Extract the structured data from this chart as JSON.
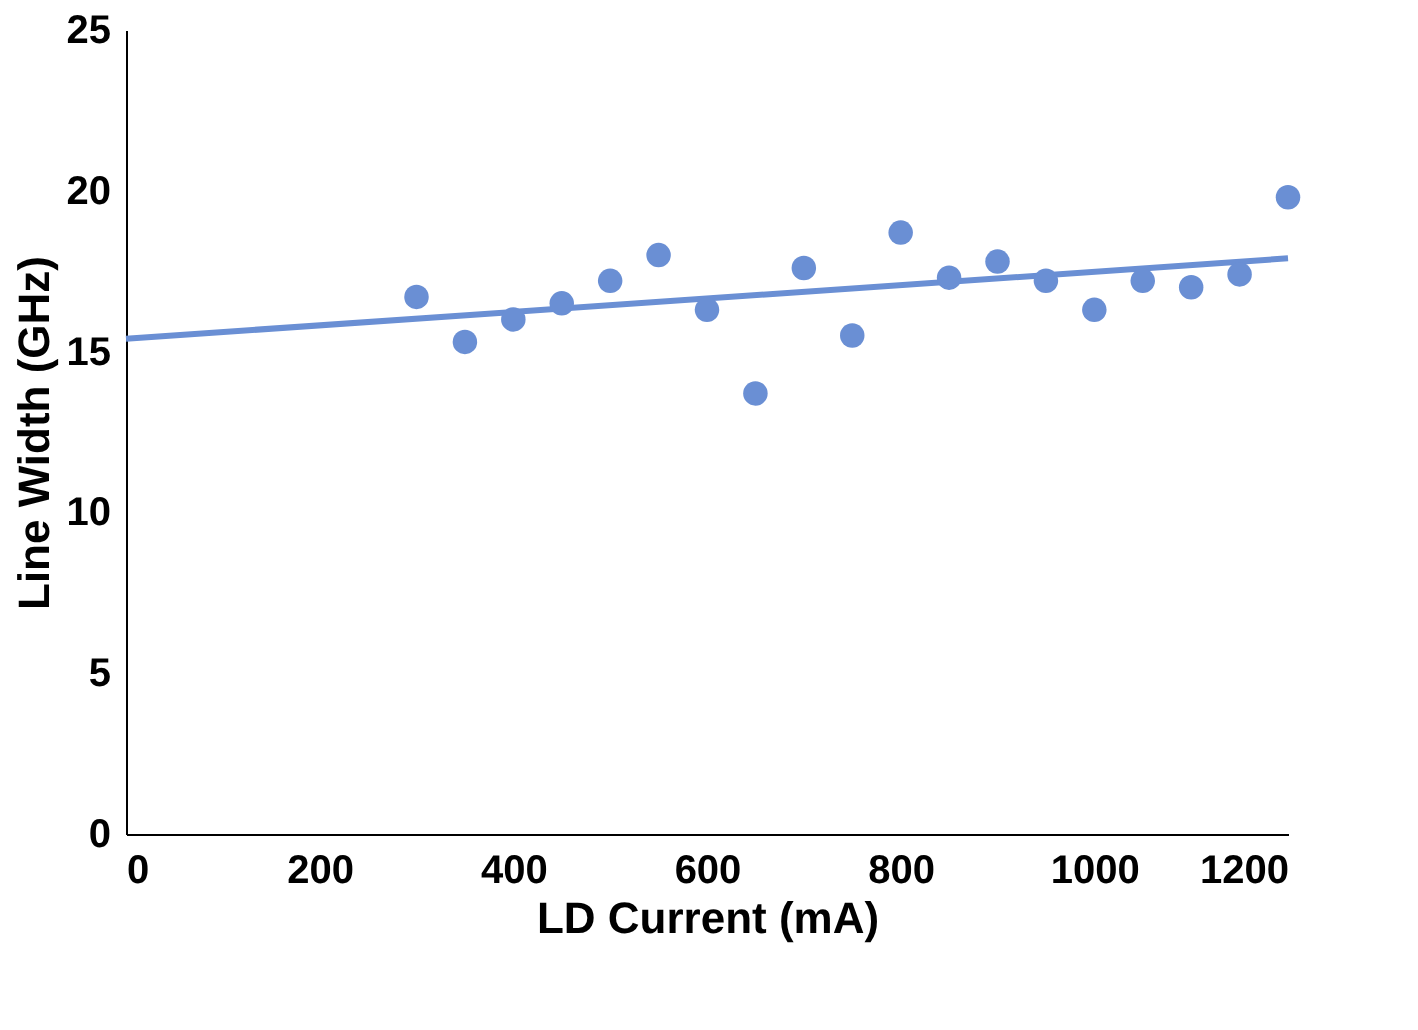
{
  "chart_data": {
    "type": "scatter",
    "xlabel": "LD Current (mA)",
    "ylabel": "Line Width (GHz)",
    "xlim": [
      0,
      1200
    ],
    "xticks": [
      0,
      200,
      400,
      600,
      800,
      1000,
      1200
    ],
    "ylim": [
      0,
      25
    ],
    "yticks": [
      0,
      5,
      10,
      15,
      20,
      25
    ],
    "grid": false,
    "marker": "circle",
    "series": [
      {
        "color": "#6a8fd4",
        "x": [
          300,
          350,
          400,
          450,
          500,
          550,
          600,
          650,
          700,
          750,
          800,
          850,
          900,
          950,
          1000,
          1050,
          1100,
          1150,
          1200
        ],
        "values": [
          16.7,
          15.3,
          16.0,
          16.5,
          17.2,
          18.0,
          16.3,
          13.7,
          17.6,
          15.5,
          18.7,
          17.3,
          17.8,
          17.2,
          16.3,
          17.2,
          17.0,
          17.4,
          19.8
        ]
      },
      {
        "type": "line",
        "color": "#6a8fd4",
        "line_style": "solid",
        "marker": "none",
        "x": [
          0,
          1200
        ],
        "values": [
          15.4,
          17.9
        ]
      }
    ]
  }
}
